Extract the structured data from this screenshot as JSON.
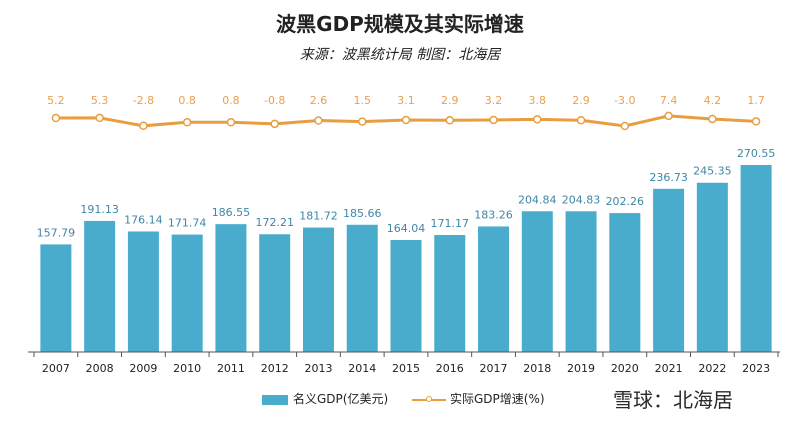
{
  "title": "波黑GDP规模及其实际增速",
  "subtitle": "来源：波黑统计局 制图：北海居",
  "watermark": "雪球：北海居",
  "colors": {
    "bar": "#4aaccd",
    "bar_label": "#3f87a6",
    "line": "#e89e3f",
    "line_label": "#e5a150"
  },
  "chart_data": {
    "type": "bar",
    "categories": [
      "2007",
      "2008",
      "2009",
      "2010",
      "2011",
      "2012",
      "2013",
      "2014",
      "2015",
      "2016",
      "2017",
      "2018",
      "2019",
      "2020",
      "2021",
      "2022",
      "2023"
    ],
    "series": [
      {
        "name": "名义GDP(亿美元)",
        "type": "bar",
        "values": [
          157.79,
          191.13,
          176.14,
          171.74,
          186.55,
          172.21,
          181.72,
          185.66,
          164.04,
          171.17,
          183.26,
          204.84,
          204.83,
          202.26,
          236.73,
          245.35,
          270.55
        ],
        "labels": [
          "157.79",
          "191.13",
          "176.14",
          "171.74",
          "186.55",
          "172.21",
          "181.72",
          "185.66",
          "164.04",
          "171.17",
          "183.26",
          "204.84",
          "204.83",
          "202.26",
          "236.73",
          "245.35",
          "270.55"
        ]
      },
      {
        "name": "实际GDP增速(%)",
        "type": "line",
        "values": [
          5.2,
          5.3,
          -2.8,
          0.8,
          0.8,
          -0.8,
          2.6,
          1.5,
          3.1,
          2.9,
          3.2,
          3.8,
          2.9,
          -3.0,
          7.4,
          4.2,
          1.7
        ],
        "labels": [
          "5.2",
          "5.3",
          "-2.8",
          "0.8",
          "0.8",
          "-0.8",
          "2.6",
          "1.5",
          "3.1",
          "2.9",
          "3.2",
          "3.8",
          "2.9",
          "-3.0",
          "7.4",
          "4.2",
          "1.7"
        ]
      }
    ],
    "legend": "bottom",
    "grid": false
  }
}
